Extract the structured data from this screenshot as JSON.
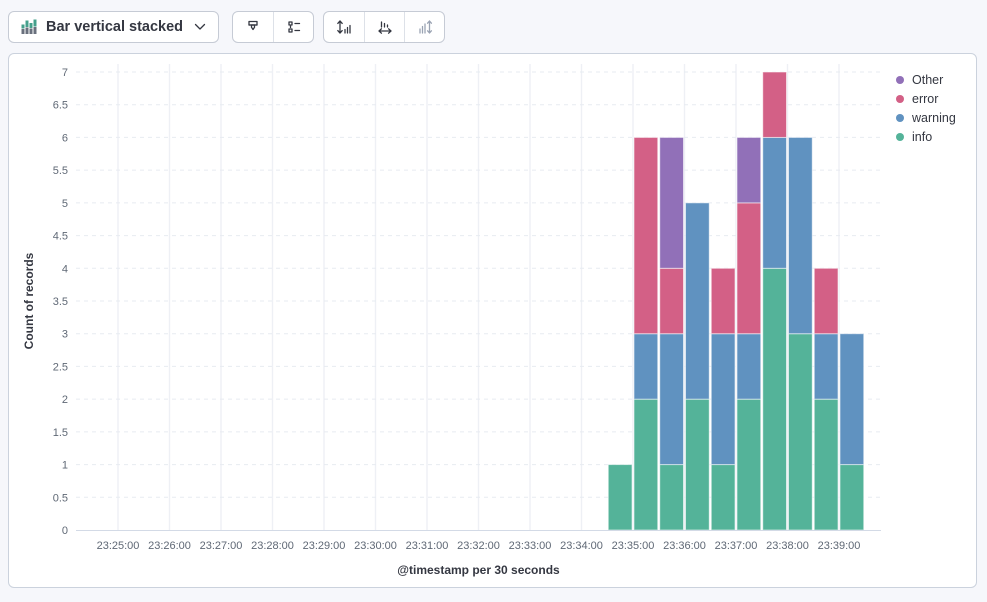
{
  "toolbar": {
    "chart_type_label": "Bar vertical stacked",
    "chart_type_icon": "stacked-bar-chart-icon",
    "group1_icons": [
      "paint-brush-icon",
      "legend-values-list-icon"
    ],
    "group2_icons": [
      "expand-vertical-axis-icon",
      "expand-horizontal-axis-icon",
      "collapse-vertical-axis-icon-disabled"
    ],
    "icon_color": "#343741",
    "disabled_icon_color": "#9AA3B3",
    "type_icon_green": "#45A08C",
    "type_icon_gray": "#69707D"
  },
  "chart_data": {
    "type": "bar",
    "stacked": true,
    "orientation": "vertical",
    "xlabel": "@timestamp per 30 seconds",
    "ylabel": "Count of records",
    "ylim": [
      0,
      7
    ],
    "y_tick_step": 0.5,
    "grid": true,
    "legend_position": "right",
    "x_tick_labels": [
      "23:25:00",
      "23:26:00",
      "23:27:00",
      "23:28:00",
      "23:29:00",
      "23:30:00",
      "23:31:00",
      "23:32:00",
      "23:33:00",
      "23:34:00",
      "23:35:00",
      "23:36:00",
      "23:37:00",
      "23:38:00",
      "23:39:00"
    ],
    "bucket_interval_seconds": 30,
    "bucket_times": [
      "23:34:30",
      "23:35:00",
      "23:35:30",
      "23:36:00",
      "23:36:30",
      "23:37:00",
      "23:37:30",
      "23:38:00",
      "23:38:30",
      "23:39:00"
    ],
    "series": [
      {
        "name": "info",
        "color": "#54B399",
        "values": [
          1,
          2,
          1,
          2,
          1,
          2,
          4,
          3,
          2,
          1
        ]
      },
      {
        "name": "warning",
        "color": "#6092C0",
        "values": [
          0,
          1,
          2,
          3,
          2,
          1,
          2,
          3,
          1,
          2
        ]
      },
      {
        "name": "error",
        "color": "#D36086",
        "values": [
          0,
          3,
          1,
          0,
          1,
          2,
          1,
          0,
          1,
          0
        ]
      },
      {
        "name": "Other",
        "color": "#9170B8",
        "values": [
          0,
          0,
          2,
          0,
          0,
          1,
          0,
          0,
          0,
          0
        ]
      }
    ],
    "legend_order_top_to_bottom": [
      "Other",
      "error",
      "warning",
      "info"
    ],
    "bar_totals": [
      1,
      6,
      6,
      5,
      4,
      6,
      7,
      6,
      4,
      3
    ]
  }
}
